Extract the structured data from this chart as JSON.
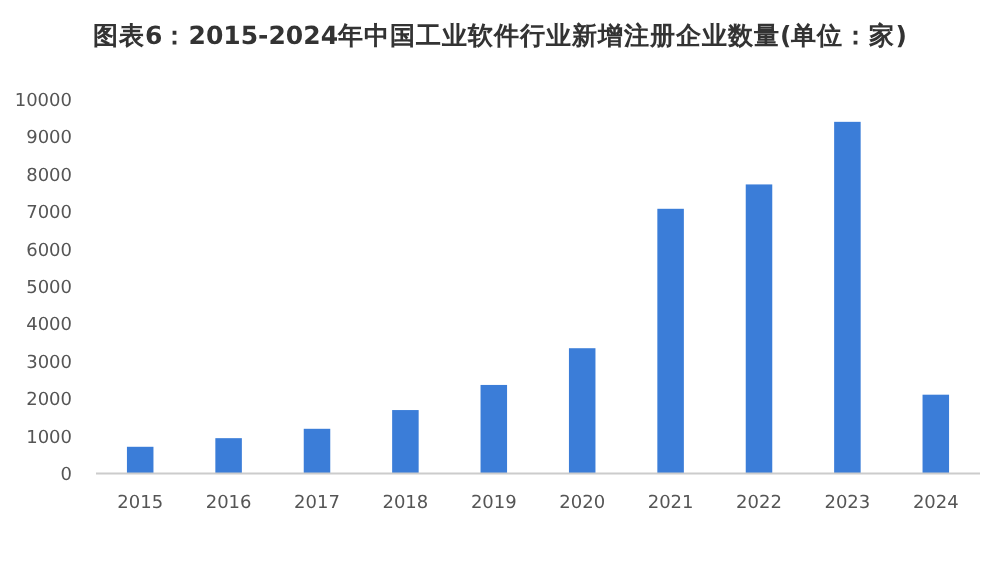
{
  "chart_data": {
    "type": "bar",
    "title": "图表6：2015-2024年中国工业软件行业新增注册企业数量(单位：家)",
    "categories": [
      "2015",
      "2016",
      "2017",
      "2018",
      "2019",
      "2020",
      "2021",
      "2022",
      "2023",
      "2024"
    ],
    "values": [
      710,
      940,
      1190,
      1690,
      2360,
      3340,
      7060,
      7710,
      9380,
      2100
    ],
    "color": "#3b7dd8",
    "ylim": [
      0,
      10000
    ],
    "yticks": [
      0,
      1000,
      2000,
      3000,
      4000,
      5000,
      6000,
      7000,
      8000,
      9000,
      10000
    ],
    "grid": false
  }
}
